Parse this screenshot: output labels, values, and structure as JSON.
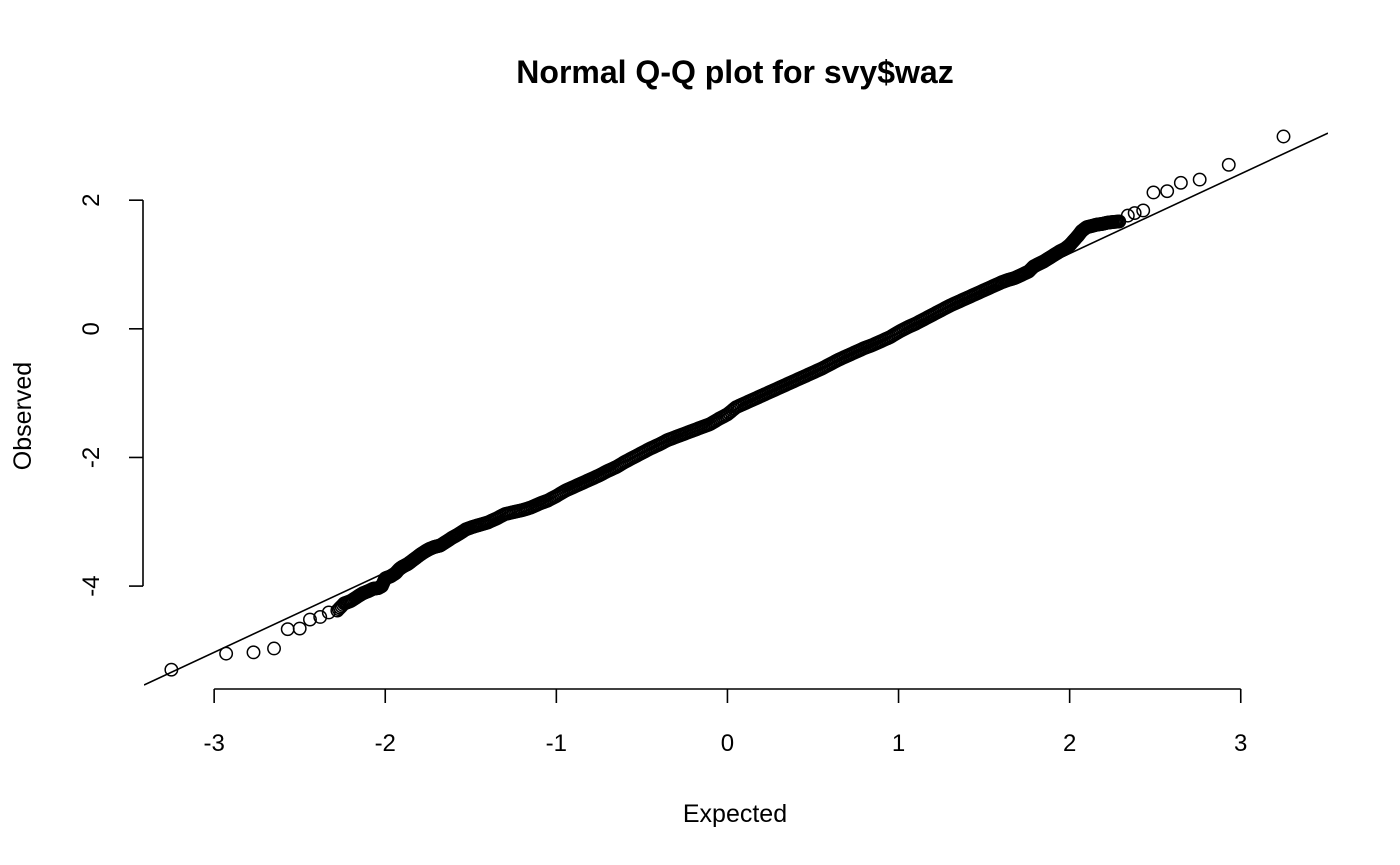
{
  "chart_data": {
    "type": "scatter",
    "title": "Normal Q-Q plot for svy$waz",
    "xlabel": "Expected",
    "ylabel": "Observed",
    "xlim": [
      -3.41,
      3.51
    ],
    "ylim": [
      -5.6,
      3.2
    ],
    "x_ticks": [
      -3,
      -2,
      -1,
      0,
      1,
      2,
      3
    ],
    "x_tick_labels": [
      "-3",
      "-2",
      "-1",
      "0",
      "1",
      "2",
      "3"
    ],
    "y_ticks": [
      -4,
      -2,
      0,
      2
    ],
    "y_tick_labels": [
      "-4",
      "-2",
      "0",
      "2"
    ],
    "grid": false,
    "legend": "none",
    "reference_line": {
      "intercept": -1.31,
      "slope": 1.24
    },
    "series": [
      {
        "marker": "open-circle",
        "points": [
          [
            -3.25,
            -5.3
          ],
          [
            -2.93,
            -5.05
          ],
          [
            -2.77,
            -5.03
          ],
          [
            -2.65,
            -4.97
          ],
          [
            -2.57,
            -4.67
          ],
          [
            -2.5,
            -4.66
          ],
          [
            -2.44,
            -4.52
          ],
          [
            -2.38,
            -4.48
          ],
          [
            -2.33,
            -4.41
          ],
          [
            -2.28,
            -4.38
          ],
          [
            -2.24,
            -4.27
          ],
          [
            -2.2,
            -4.23
          ],
          [
            -2.16,
            -4.16
          ],
          [
            -2.13,
            -4.11
          ],
          [
            -2.1,
            -4.08
          ],
          [
            -2.07,
            -4.04
          ],
          [
            -2.04,
            -4.03
          ],
          [
            -2.02,
            -4.0
          ],
          [
            -2.0,
            -3.88
          ],
          [
            -1.97,
            -3.85
          ],
          [
            -1.94,
            -3.8
          ],
          [
            -1.92,
            -3.74
          ],
          [
            -1.9,
            -3.7
          ],
          [
            -1.87,
            -3.66
          ],
          [
            -1.85,
            -3.62
          ],
          [
            -1.82,
            -3.56
          ],
          [
            -1.79,
            -3.5
          ],
          [
            -1.76,
            -3.45
          ],
          [
            -1.74,
            -3.42
          ],
          [
            -1.71,
            -3.39
          ],
          [
            -1.68,
            -3.37
          ],
          [
            -1.65,
            -3.32
          ],
          [
            -1.61,
            -3.25
          ],
          [
            -1.57,
            -3.19
          ],
          [
            -1.53,
            -3.12
          ],
          [
            -1.49,
            -3.08
          ],
          [
            -1.45,
            -3.05
          ],
          [
            -1.4,
            -3.01
          ],
          [
            -1.35,
            -2.95
          ],
          [
            -1.3,
            -2.88
          ],
          [
            -1.25,
            -2.85
          ],
          [
            -1.2,
            -2.82
          ],
          [
            -1.15,
            -2.78
          ],
          [
            -1.1,
            -2.72
          ],
          [
            -1.05,
            -2.67
          ],
          [
            -1.0,
            -2.6
          ],
          [
            -0.95,
            -2.52
          ],
          [
            -0.9,
            -2.46
          ],
          [
            -0.85,
            -2.4
          ],
          [
            -0.8,
            -2.34
          ],
          [
            -0.75,
            -2.28
          ],
          [
            -0.7,
            -2.21
          ],
          [
            -0.65,
            -2.15
          ],
          [
            -0.6,
            -2.07
          ],
          [
            -0.55,
            -2.0
          ],
          [
            -0.5,
            -1.93
          ],
          [
            -0.45,
            -1.86
          ],
          [
            -0.4,
            -1.8
          ],
          [
            -0.35,
            -1.73
          ],
          [
            -0.3,
            -1.68
          ],
          [
            -0.25,
            -1.63
          ],
          [
            -0.2,
            -1.58
          ],
          [
            -0.15,
            -1.53
          ],
          [
            -0.1,
            -1.48
          ],
          [
            -0.05,
            -1.4
          ],
          [
            0.0,
            -1.33
          ],
          [
            0.05,
            -1.22
          ],
          [
            0.1,
            -1.16
          ],
          [
            0.15,
            -1.1
          ],
          [
            0.2,
            -1.04
          ],
          [
            0.25,
            -0.98
          ],
          [
            0.3,
            -0.92
          ],
          [
            0.35,
            -0.86
          ],
          [
            0.4,
            -0.8
          ],
          [
            0.45,
            -0.74
          ],
          [
            0.5,
            -0.68
          ],
          [
            0.55,
            -0.62
          ],
          [
            0.6,
            -0.55
          ],
          [
            0.65,
            -0.48
          ],
          [
            0.7,
            -0.42
          ],
          [
            0.75,
            -0.36
          ],
          [
            0.8,
            -0.3
          ],
          [
            0.85,
            -0.25
          ],
          [
            0.9,
            -0.19
          ],
          [
            0.95,
            -0.13
          ],
          [
            1.0,
            -0.05
          ],
          [
            1.05,
            0.02
          ],
          [
            1.1,
            0.08
          ],
          [
            1.15,
            0.15
          ],
          [
            1.2,
            0.22
          ],
          [
            1.25,
            0.29
          ],
          [
            1.3,
            0.36
          ],
          [
            1.35,
            0.42
          ],
          [
            1.4,
            0.48
          ],
          [
            1.45,
            0.54
          ],
          [
            1.5,
            0.6
          ],
          [
            1.55,
            0.66
          ],
          [
            1.6,
            0.72
          ],
          [
            1.64,
            0.76
          ],
          [
            1.68,
            0.79
          ],
          [
            1.72,
            0.84
          ],
          [
            1.76,
            0.89
          ],
          [
            1.79,
            0.97
          ],
          [
            1.82,
            1.01
          ],
          [
            1.85,
            1.05
          ],
          [
            1.88,
            1.1
          ],
          [
            1.91,
            1.15
          ],
          [
            1.94,
            1.2
          ],
          [
            1.97,
            1.24
          ],
          [
            2.0,
            1.3
          ],
          [
            2.02,
            1.36
          ],
          [
            2.05,
            1.45
          ],
          [
            2.07,
            1.52
          ],
          [
            2.1,
            1.58
          ],
          [
            2.13,
            1.6
          ],
          [
            2.16,
            1.62
          ],
          [
            2.19,
            1.63
          ],
          [
            2.22,
            1.65
          ],
          [
            2.25,
            1.66
          ],
          [
            2.29,
            1.67
          ],
          [
            2.34,
            1.76
          ],
          [
            2.38,
            1.8
          ],
          [
            2.43,
            1.84
          ],
          [
            2.49,
            2.12
          ],
          [
            2.57,
            2.14
          ],
          [
            2.65,
            2.27
          ],
          [
            2.76,
            2.32
          ],
          [
            2.93,
            2.55
          ],
          [
            3.25,
            2.99
          ]
        ]
      }
    ]
  }
}
